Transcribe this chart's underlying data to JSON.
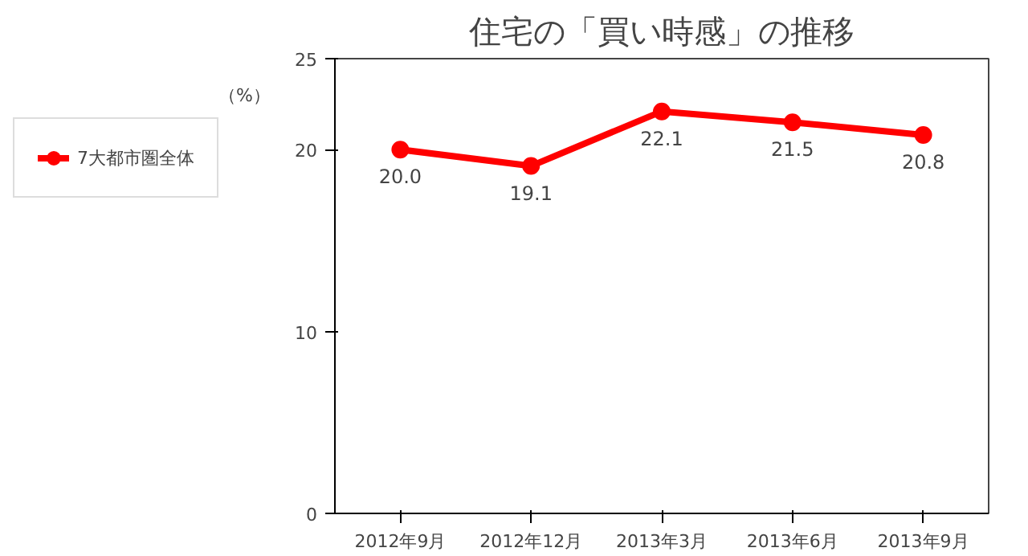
{
  "chart_data": {
    "type": "line",
    "title": "住宅の「買い時感」の推移",
    "ylabel": "（%）",
    "categories": [
      "2012年9月",
      "2012年12月",
      "2013年3月",
      "2013年6月",
      "2013年9月"
    ],
    "series": [
      {
        "name": "7大都市圏全体",
        "color": "#ff0000",
        "values": [
          20.0,
          19.1,
          22.1,
          21.5,
          20.8
        ]
      }
    ],
    "ylim": [
      0,
      25
    ],
    "yticks": [
      0,
      10,
      20,
      25
    ],
    "grid": false,
    "legend": "left",
    "marker": "circle",
    "line_style": "solid",
    "value_labels": [
      "20.0",
      "19.1",
      "22.1",
      "21.5",
      "20.8"
    ]
  }
}
